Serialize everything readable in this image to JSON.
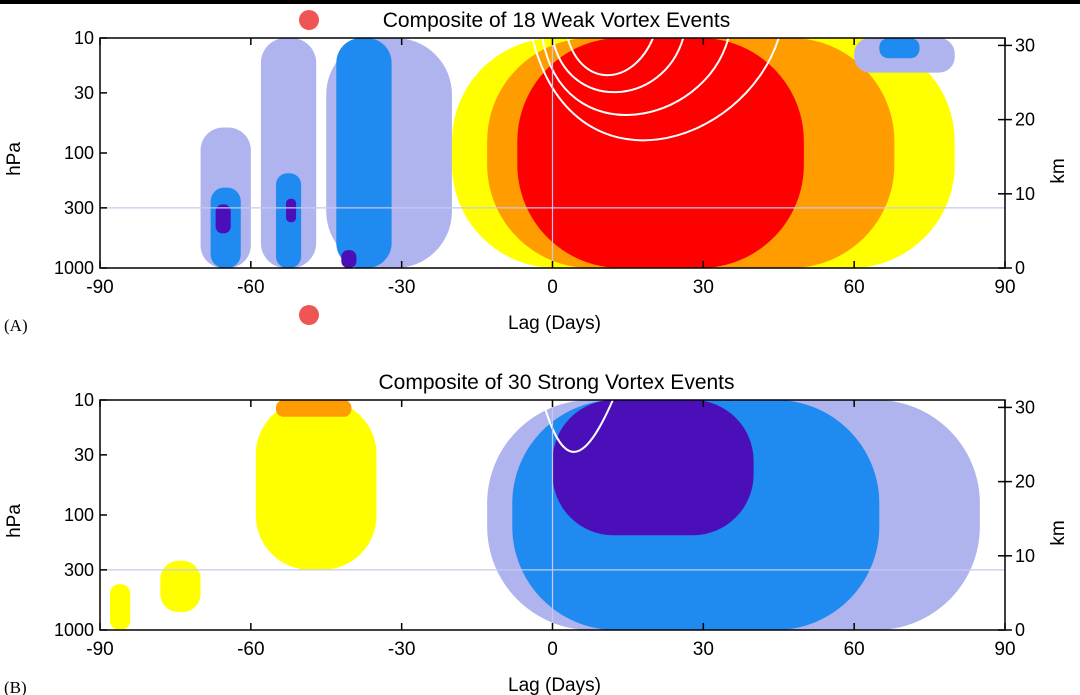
{
  "colors": {
    "strong_neg": "#4a0fb8",
    "mid_neg": "#1f8af0",
    "weak_neg": "#b0b4ee",
    "weak_pos": "#ffff00",
    "mid_pos": "#ff9d00",
    "strong_pos": "#ff0000",
    "contour": "#ffffff",
    "marker": "#f05555"
  },
  "annotations": [
    {
      "name": "marker-dot-top",
      "kind": "red-dot"
    },
    {
      "name": "marker-dot-bottom",
      "kind": "red-dot"
    }
  ],
  "chart_data": [
    {
      "type": "heatmap",
      "panel_label": "(A)",
      "title": "Composite of 18 Weak Vortex Events",
      "xlabel": "Lag (Days)",
      "ylabel": "hPa",
      "ylabel_right": "km",
      "xlim": [
        -90,
        90
      ],
      "xticks": [
        "-90",
        "-60",
        "-30",
        "0",
        "30",
        "60",
        "90"
      ],
      "yticks_left": [
        "10",
        "30",
        "100",
        "300",
        "1000"
      ],
      "yticks_right": [
        "30",
        "20",
        "10",
        "0"
      ],
      "y_scale": "log",
      "reference_lines": [
        "x = 0",
        "300 hPa"
      ],
      "shaded": [
        {
          "level": "weak_neg",
          "from_day": -70,
          "to_day": -60,
          "from_hPa": 1000,
          "to_hPa": 60
        },
        {
          "level": "mid_neg",
          "from_day": -68,
          "to_day": -62,
          "from_hPa": 1000,
          "to_hPa": 200
        },
        {
          "level": "strong_neg",
          "from_day": -67,
          "to_day": -64,
          "from_hPa": 500,
          "to_hPa": 280
        },
        {
          "level": "weak_neg",
          "from_day": -58,
          "to_day": -47,
          "from_hPa": 1000,
          "to_hPa": 10
        },
        {
          "level": "mid_neg",
          "from_day": -55,
          "to_day": -50,
          "from_hPa": 1000,
          "to_hPa": 150
        },
        {
          "level": "strong_neg",
          "from_day": -53,
          "to_day": -51,
          "from_hPa": 400,
          "to_hPa": 250
        },
        {
          "level": "weak_neg",
          "from_day": -45,
          "to_day": -20,
          "from_hPa": 1000,
          "to_hPa": 10
        },
        {
          "level": "mid_neg",
          "from_day": -43,
          "to_day": -32,
          "from_hPa": 1000,
          "to_hPa": 10
        },
        {
          "level": "strong_neg",
          "from_day": -42,
          "to_day": -39,
          "from_hPa": 1000,
          "to_hPa": 700
        },
        {
          "level": "weak_pos",
          "from_day": -20,
          "to_day": 80,
          "from_hPa": 1000,
          "to_hPa": 10
        },
        {
          "level": "mid_pos",
          "from_day": -13,
          "to_day": 68,
          "from_hPa": 1000,
          "to_hPa": 10
        },
        {
          "level": "strong_pos",
          "from_day": -7,
          "to_day": 50,
          "from_hPa": 1000,
          "to_hPa": 10
        },
        {
          "level": "weak_neg",
          "from_day": 60,
          "to_day": 80,
          "from_hPa": 20,
          "to_hPa": 10
        },
        {
          "level": "mid_neg",
          "from_day": 65,
          "to_day": 73,
          "from_hPa": 15,
          "to_hPa": 10
        }
      ]
    },
    {
      "type": "heatmap",
      "panel_label": "(B)",
      "title": "Composite of 30 Strong Vortex Events",
      "xlabel": "Lag (Days)",
      "ylabel": "hPa",
      "ylabel_right": "km",
      "xlim": [
        -90,
        90
      ],
      "xticks": [
        "-90",
        "-60",
        "-30",
        "0",
        "30",
        "60",
        "90"
      ],
      "yticks_left": [
        "10",
        "30",
        "100",
        "300",
        "1000"
      ],
      "yticks_right": [
        "30",
        "20",
        "10",
        "0"
      ],
      "y_scale": "log",
      "reference_lines": [
        "x = 0",
        "300 hPa"
      ],
      "shaded": [
        {
          "level": "weak_pos",
          "from_day": -88,
          "to_day": -84,
          "from_hPa": 1000,
          "to_hPa": 400
        },
        {
          "level": "weak_pos",
          "from_day": -78,
          "to_day": -70,
          "from_hPa": 700,
          "to_hPa": 250
        },
        {
          "level": "weak_pos",
          "from_day": -59,
          "to_day": -35,
          "from_hPa": 300,
          "to_hPa": 10
        },
        {
          "level": "mid_pos",
          "from_day": -55,
          "to_day": -40,
          "from_hPa": 14,
          "to_hPa": 10
        },
        {
          "level": "weak_neg",
          "from_day": -13,
          "to_day": 85,
          "from_hPa": 1000,
          "to_hPa": 10
        },
        {
          "level": "mid_neg",
          "from_day": -8,
          "to_day": 65,
          "from_hPa": 1000,
          "to_hPa": 10
        },
        {
          "level": "strong_neg",
          "from_day": 0,
          "to_day": 40,
          "from_hPa": 150,
          "to_hPa": 10
        }
      ]
    }
  ]
}
